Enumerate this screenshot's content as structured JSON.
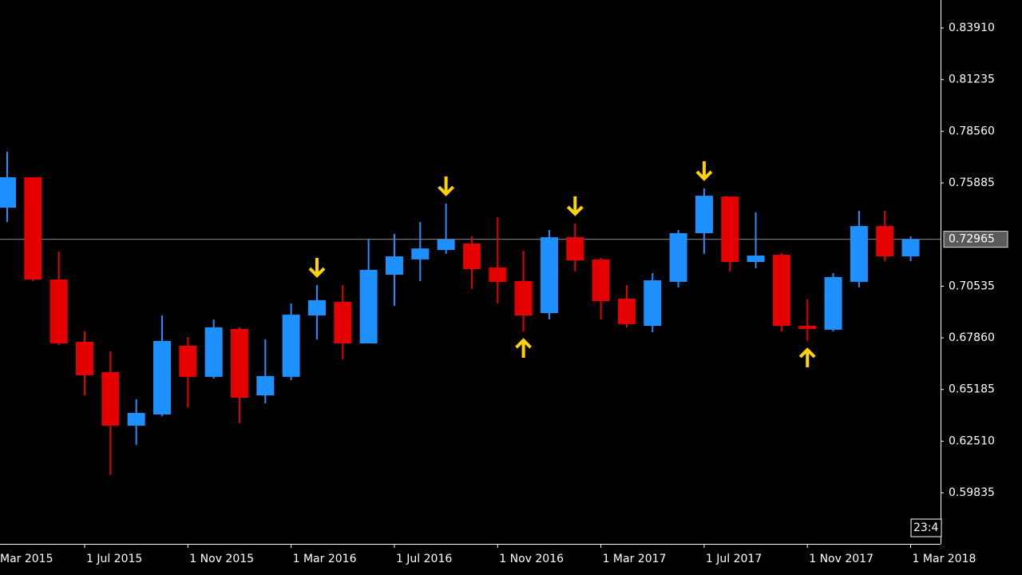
{
  "chart_data": {
    "type": "candlestick",
    "categories": [
      "Mar 2015",
      null,
      null,
      null,
      "1 Jul 2015",
      null,
      null,
      null,
      "1 Nov 2015",
      null,
      null,
      null,
      "1 Mar 2016",
      null,
      null,
      null,
      "1 Jul 2016",
      null,
      null,
      null,
      "1 Nov 2016",
      null,
      null,
      null,
      "1 Mar 2017",
      null,
      null,
      null,
      "1 Jul 2017",
      null,
      null,
      null,
      "1 Nov 2017",
      null,
      null,
      null,
      "1 Mar 2018"
    ],
    "open": [
      null,
      0.746,
      0.7618,
      0.7088,
      0.6766,
      0.6608,
      0.6331,
      0.6389,
      0.6745,
      0.6584,
      0.6832,
      0.6488,
      0.6584,
      0.6902,
      0.6972,
      0.6757,
      0.7113,
      0.7192,
      0.7241,
      0.7274,
      0.715,
      0.708,
      0.6914,
      0.7307,
      0.7192,
      0.6989,
      0.6848,
      0.7076,
      0.7328,
      0.7518,
      0.7179,
      0.7216,
      0.6848,
      0.6828,
      0.7076,
      0.7365,
      0.7208
    ],
    "high": [
      null,
      0.775,
      0.7618,
      0.7233,
      0.6819,
      0.6716,
      0.6468,
      0.6902,
      0.679,
      0.6881,
      0.684,
      0.6778,
      0.6964,
      0.7059,
      0.7059,
      0.7295,
      0.7324,
      0.7386,
      0.7481,
      0.7312,
      0.7411,
      0.7237,
      0.7345,
      0.7378,
      0.72,
      0.7059,
      0.7121,
      0.7345,
      0.756,
      0.7518,
      0.7436,
      0.7225,
      0.6985,
      0.7121,
      0.7444,
      0.7444,
      0.7312
    ],
    "low": [
      null,
      0.7386,
      0.708,
      0.6749,
      0.6488,
      0.6075,
      0.6232,
      0.6381,
      0.6426,
      0.6575,
      0.6344,
      0.6447,
      0.6567,
      0.6778,
      0.6675,
      0.6757,
      0.6952,
      0.708,
      0.7221,
      0.7039,
      0.6964,
      0.6819,
      0.6881,
      0.713,
      0.6881,
      0.684,
      0.6815,
      0.7047,
      0.7221,
      0.713,
      0.7146,
      0.6819,
      0.677,
      0.6819,
      0.7047,
      0.7183,
      0.7183
    ],
    "close": [
      null,
      0.7618,
      0.7088,
      0.6757,
      0.6592,
      0.6331,
      0.6397,
      0.677,
      0.6584,
      0.684,
      0.6476,
      0.6588,
      0.6906,
      0.6981,
      0.6757,
      0.7138,
      0.7208,
      0.7249,
      0.7295,
      0.7142,
      0.7076,
      0.6902,
      0.7307,
      0.7187,
      0.6976,
      0.6857,
      0.7084,
      0.7328,
      0.7522,
      0.7179,
      0.7212,
      0.6848,
      0.6832,
      0.7101,
      0.7365,
      0.7208,
      0.72965
    ],
    "signals": [
      null,
      null,
      null,
      null,
      null,
      null,
      null,
      null,
      null,
      null,
      null,
      null,
      null,
      "down",
      null,
      null,
      null,
      null,
      "down",
      null,
      null,
      "up",
      null,
      "down",
      null,
      null,
      null,
      null,
      "down",
      null,
      null,
      null,
      "up",
      null,
      null,
      null,
      null
    ],
    "up_color": "#1e90ff",
    "down_color": "#e50000",
    "signal_color": "#ffd200",
    "ylim": [
      0.57231,
      0.85358
    ],
    "yticks": [
      {
        "value": 0.8391,
        "label": "0.83910"
      },
      0.81235,
      {
        "value": 0.7856,
        "label": "0.78560"
      },
      0.75885,
      0.70535,
      {
        "value": 0.6786,
        "label": "0.67860"
      },
      0.65185,
      {
        "value": 0.6251,
        "label": "0.62510"
      },
      0.59835
    ],
    "last_price": 0.72965,
    "price_line_color": "#8a8a8a",
    "time_label": "23:4"
  }
}
